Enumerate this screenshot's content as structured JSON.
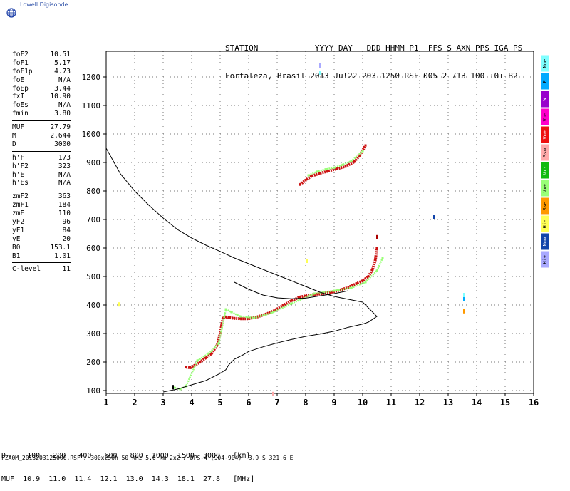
{
  "header": {
    "brand": "Lowell Digisonde",
    "line1": "STATION            YYYY DAY   DDD HHMM P1  FFS S AXN PPS IGA PS",
    "line2": "Fortaleza, Brasil 2013 Jul22 203 1250 RSF 005 2 713 100 +0+ B2"
  },
  "params": {
    "group1": [
      {
        "name": "foF2",
        "value": "10.51"
      },
      {
        "name": "foF1",
        "value": "5.17"
      },
      {
        "name": "foF1p",
        "value": "4.73"
      },
      {
        "name": "foE",
        "value": "N/A"
      },
      {
        "name": "foEp",
        "value": "3.44"
      },
      {
        "name": "fxI",
        "value": "10.90"
      },
      {
        "name": "foEs",
        "value": "N/A"
      },
      {
        "name": "fmin",
        "value": "3.80"
      }
    ],
    "group2": [
      {
        "name": "MUF",
        "value": "27.79"
      },
      {
        "name": "M",
        "value": "2.644"
      },
      {
        "name": "D",
        "value": "3000"
      }
    ],
    "group3": [
      {
        "name": "h'F",
        "value": "173"
      },
      {
        "name": "h'F2",
        "value": "323"
      },
      {
        "name": "h'E",
        "value": "N/A"
      },
      {
        "name": "h'Es",
        "value": "N/A"
      }
    ],
    "group4": [
      {
        "name": "zmF2",
        "value": "363"
      },
      {
        "name": "zmF1",
        "value": "184"
      },
      {
        "name": "zmE",
        "value": "110"
      },
      {
        "name": "yF2",
        "value": "96"
      },
      {
        "name": "yF1",
        "value": "84"
      },
      {
        "name": "yE",
        "value": "20"
      },
      {
        "name": "B0",
        "value": "153.1"
      },
      {
        "name": "B1",
        "value": "1.01"
      }
    ],
    "group5": [
      {
        "name": "C-level",
        "value": "11"
      }
    ]
  },
  "legend": [
    {
      "label": "Nne",
      "color": "#7fffff"
    },
    {
      "label": "E",
      "color": "#00aaff"
    },
    {
      "label": "W",
      "color": "#9900cc"
    },
    {
      "label": "Vo-",
      "color": "#ff00cc"
    },
    {
      "label": "Vo+",
      "color": "#ee1111"
    },
    {
      "label": "Ssw",
      "color": "#ffaaaa"
    },
    {
      "label": "Vx-",
      "color": "#11bb11"
    },
    {
      "label": "Vx+",
      "color": "#99ff77"
    },
    {
      "label": "Sse",
      "color": "#ff9900"
    },
    {
      "label": "Hi-",
      "color": "#ffff55"
    },
    {
      "label": "Nnw",
      "color": "#1144aa"
    },
    {
      "label": "Hi+",
      "color": "#aaaaff"
    }
  ],
  "muf_table": {
    "row1": "D     100   200   400   600   800  1000  1500  3000   [km]",
    "row2": "MUF  10.9  11.0  11.4  12.1  13.0  14.3  18.1  27.8   [MHz]"
  },
  "footer": "FZA0M_2013203125000.RSF / 300x256h 50 kHz 5.0 km 2x2 / DPS-4 (904-904)  3.9 S 321.6 E",
  "chart_data": {
    "type": "scatter",
    "xlim": [
      1,
      16
    ],
    "ylim": [
      90,
      1290
    ],
    "xticks": [
      "1",
      "2",
      "3",
      "4",
      "5",
      "6",
      "7",
      "8",
      "9",
      "10",
      "11",
      "12",
      "13",
      "14",
      "15",
      "16"
    ],
    "yticks": [
      "100",
      "200",
      "300",
      "400",
      "500",
      "600",
      "700",
      "800",
      "900",
      "1000",
      "1100",
      "1200"
    ],
    "grid": true,
    "series": [
      {
        "kind": "trace",
        "color": "#cc1111",
        "x": [
          3.8,
          3.95,
          4.1,
          4.3,
          4.5,
          4.7,
          4.9,
          5.0,
          5.1,
          5.2,
          5.3,
          5.5,
          5.7,
          6.0,
          6.3,
          6.6,
          6.9,
          7.2,
          7.5,
          7.8,
          8.0,
          8.3,
          8.6,
          8.9,
          9.2,
          9.5,
          9.8,
          10.0,
          10.2,
          10.35,
          10.45,
          10.5
        ],
        "y": [
          182,
          180,
          188,
          200,
          215,
          230,
          260,
          300,
          355,
          358,
          356,
          353,
          352,
          352,
          358,
          368,
          380,
          398,
          415,
          428,
          432,
          437,
          440,
          445,
          452,
          462,
          476,
          485,
          500,
          525,
          560,
          600
        ]
      },
      {
        "kind": "trace",
        "color": "#99ff77",
        "x": [
          3.4,
          3.6,
          3.8,
          4.2,
          4.6,
          4.95,
          5.2,
          5.4,
          5.7,
          6.2,
          6.8,
          7.5,
          8.3,
          9.0,
          9.6,
          10.1,
          10.5,
          10.7
        ],
        "y": [
          110,
          105,
          115,
          205,
          230,
          265,
          385,
          375,
          360,
          355,
          372,
          405,
          440,
          450,
          460,
          480,
          520,
          565
        ]
      },
      {
        "kind": "trace",
        "color": "#cc1111",
        "x": [
          7.8,
          8.0,
          8.2,
          8.5,
          8.8,
          9.1,
          9.4,
          9.7,
          9.9,
          10.1
        ],
        "y": [
          822,
          838,
          852,
          862,
          870,
          878,
          886,
          902,
          925,
          960
        ]
      },
      {
        "kind": "trace",
        "color": "#99ff77",
        "x": [
          8.1,
          8.4,
          8.7,
          9.0,
          9.3,
          9.6,
          10.0
        ],
        "y": [
          855,
          868,
          876,
          882,
          892,
          905,
          940
        ]
      },
      {
        "kind": "profile",
        "color": "#000000",
        "x": [
          1.0,
          1.5,
          2.0,
          2.5,
          3.0,
          3.5,
          4.0,
          4.5,
          5.0,
          5.5,
          6.0,
          6.5,
          7.0,
          7.5,
          8.0,
          8.5,
          9.0,
          9.5,
          10.0,
          10.2,
          10.5,
          10.2,
          10.0,
          9.5,
          9.0,
          8.5,
          8.0,
          7.5,
          7.0,
          6.5,
          6.0,
          5.8,
          5.5,
          5.3,
          5.2,
          5.0,
          4.5,
          4.0,
          3.5,
          3.0
        ],
        "y": [
          950,
          860,
          800,
          750,
          705,
          665,
          635,
          610,
          588,
          565,
          545,
          525,
          505,
          485,
          465,
          445,
          430,
          420,
          410,
          390,
          360,
          340,
          333,
          322,
          308,
          298,
          290,
          279,
          267,
          253,
          237,
          225,
          210,
          190,
          173,
          160,
          135,
          120,
          105,
          95
        ]
      },
      {
        "kind": "profile",
        "color": "#000000",
        "x": [
          5.5,
          6.0,
          6.5,
          7.0,
          7.5,
          8.0,
          8.5,
          9.0,
          9.5
        ],
        "y": [
          480,
          455,
          435,
          425,
          422,
          424,
          432,
          440,
          450
        ]
      }
    ],
    "scatter_points": [
      {
        "x": 8.5,
        "y": 1240,
        "color": "#aaaaff"
      },
      {
        "x": 8.5,
        "y": 1215,
        "color": "#7fffff"
      },
      {
        "x": 12.5,
        "y": 710,
        "color": "#1144aa"
      },
      {
        "x": 13.55,
        "y": 435,
        "color": "#7fffff"
      },
      {
        "x": 13.55,
        "y": 420,
        "color": "#00aaff"
      },
      {
        "x": 13.55,
        "y": 378,
        "color": "#ff9900"
      },
      {
        "x": 1.45,
        "y": 402,
        "color": "#ffff55"
      },
      {
        "x": 3.35,
        "y": 112,
        "color": "#000000"
      },
      {
        "x": 8.05,
        "y": 555,
        "color": "#ffff55"
      },
      {
        "x": 6.85,
        "y": 88,
        "color": "#ffaaaa"
      },
      {
        "x": 10.5,
        "y": 638,
        "color": "#aa0000"
      }
    ]
  }
}
